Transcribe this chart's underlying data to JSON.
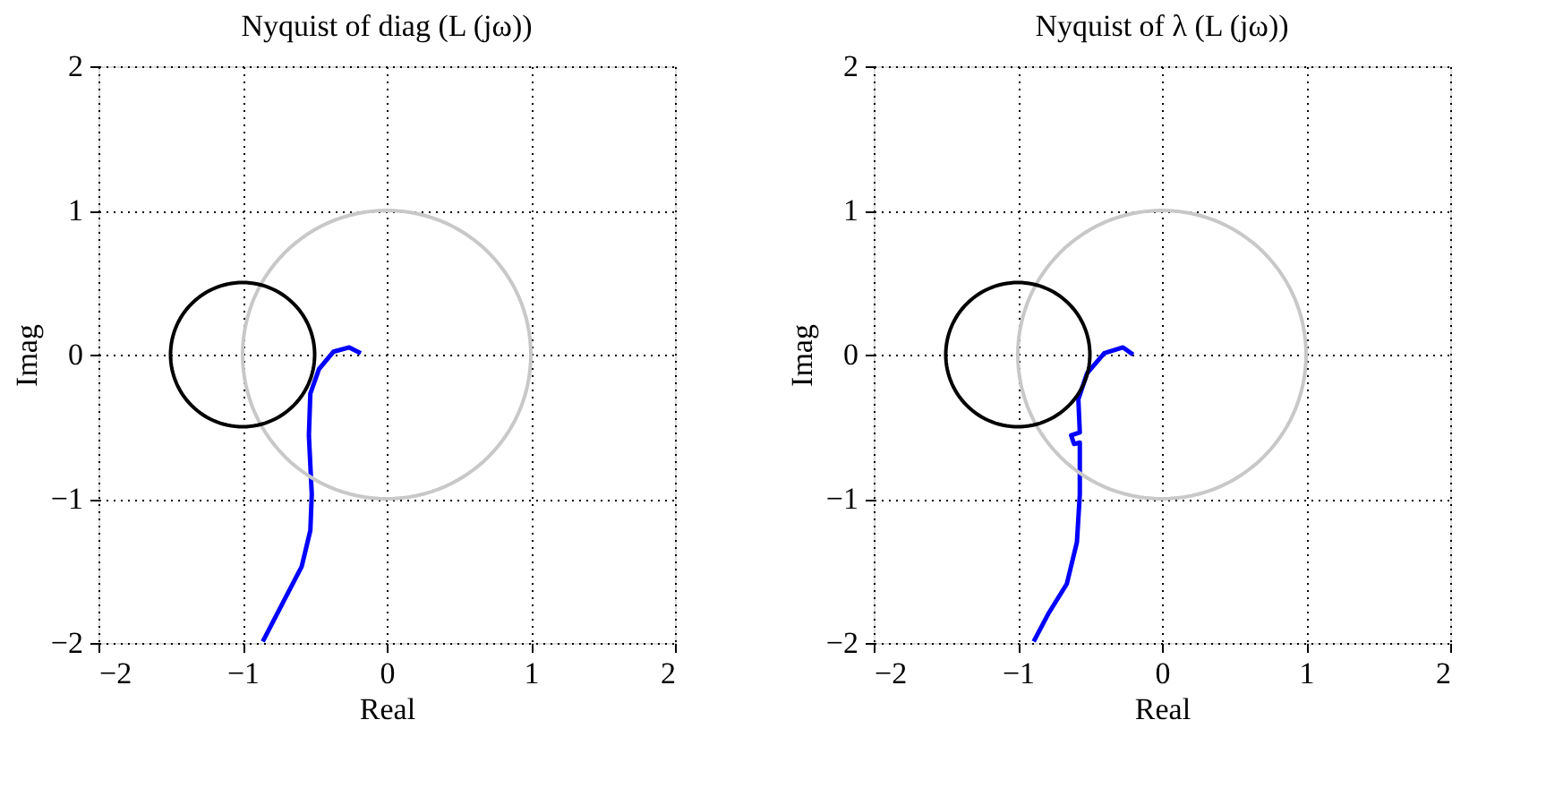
{
  "chart_data": [
    {
      "type": "line",
      "title": "Nyquist of diag (L (jω))",
      "xlabel": "Real",
      "ylabel": "Imag",
      "xlim": [
        -2,
        2
      ],
      "ylim": [
        -2,
        2
      ],
      "xticks": [
        -2,
        -1,
        0,
        1,
        2
      ],
      "yticks": [
        -2,
        -1,
        0,
        1,
        2
      ],
      "grid": true,
      "legend": false,
      "series": [
        {
          "color": "#0000ff",
          "x": [
            -0.18,
            -0.26,
            -0.37,
            -0.47,
            -0.53,
            -0.54,
            -0.52,
            -0.53,
            -0.59,
            -0.72,
            -0.86
          ],
          "values": [
            0.01,
            0.05,
            0.02,
            -0.1,
            -0.27,
            -0.56,
            -0.97,
            -1.22,
            -1.47,
            -1.72,
            -1.99
          ]
        }
      ]
    },
    {
      "type": "line",
      "title": "Nyquist of λ (L (jω))",
      "xlabel": "Real",
      "ylabel": "Imag",
      "xlim": [
        -2,
        2
      ],
      "ylim": [
        -2,
        2
      ],
      "xticks": [
        -2,
        -1,
        0,
        1,
        2
      ],
      "yticks": [
        -2,
        -1,
        0,
        1,
        2
      ],
      "grid": true,
      "legend": false,
      "series": [
        {
          "color": "#0000ff",
          "x": [
            -0.2,
            -0.27,
            -0.4,
            -0.52,
            -0.58,
            -0.57,
            -0.63,
            -0.61,
            -0.57,
            -0.57,
            -0.57,
            -0.59,
            -0.66,
            -0.79,
            -0.89
          ],
          "values": [
            0,
            0.05,
            0.01,
            -0.13,
            -0.31,
            -0.54,
            -0.56,
            -0.62,
            -0.61,
            -0.81,
            -0.97,
            -1.3,
            -1.59,
            -1.8,
            -1.99
          ]
        }
      ]
    }
  ]
}
